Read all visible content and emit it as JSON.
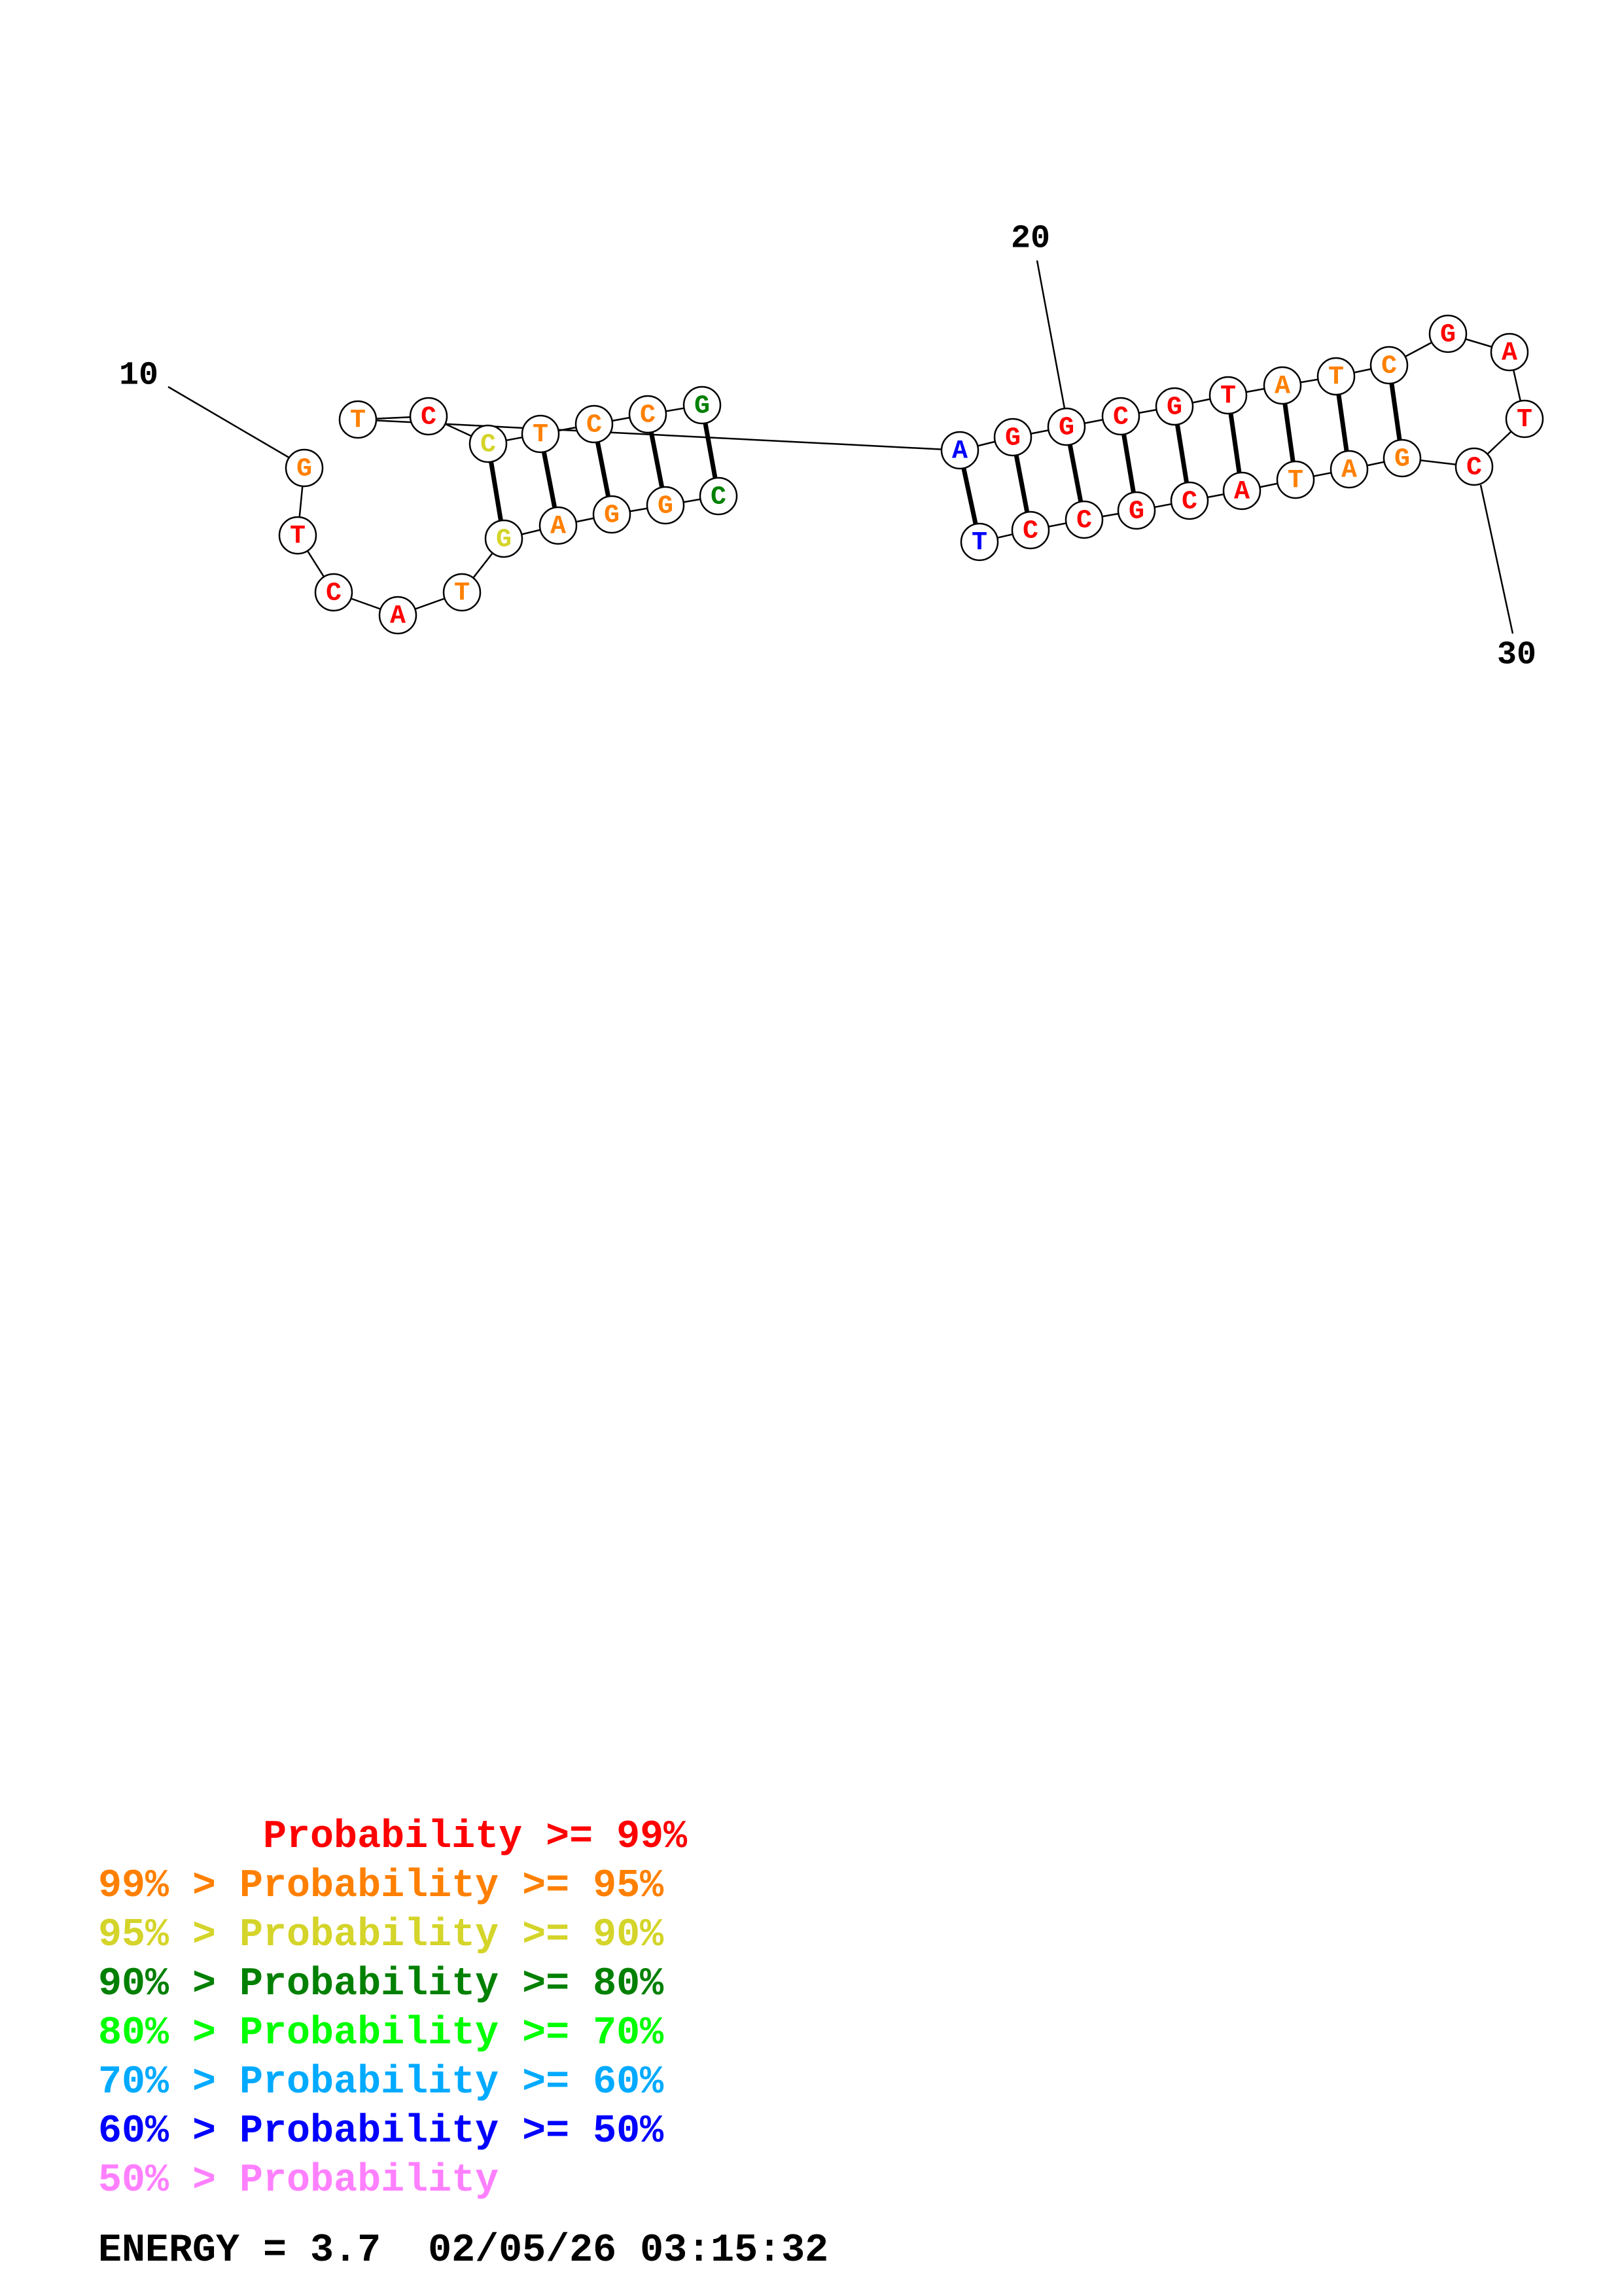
{
  "sequence": [
    {
      "base": "G",
      "color": "#ff8000"
    },
    {
      "base": "T",
      "color": "#ff0000"
    },
    {
      "base": "C",
      "color": "#ff0000"
    },
    {
      "base": "A",
      "color": "#ff0000"
    },
    {
      "base": "T",
      "color": "#ff8000"
    },
    {
      "base": "G",
      "color": "#d4d42a"
    },
    {
      "base": "A",
      "color": "#ff8000"
    },
    {
      "base": "G",
      "color": "#ff8000"
    },
    {
      "base": "G",
      "color": "#ff8000"
    },
    {
      "base": "C",
      "color": "#008000"
    },
    {
      "base": "G",
      "color": "#008000"
    },
    {
      "base": "C",
      "color": "#ff8000"
    },
    {
      "base": "C",
      "color": "#ff8000"
    },
    {
      "base": "T",
      "color": "#ff8000"
    },
    {
      "base": "C",
      "color": "#d4d42a"
    },
    {
      "base": "C",
      "color": "#ff0000"
    },
    {
      "base": "T",
      "color": "#ff8000"
    },
    {
      "base": "A",
      "color": "#0000ff"
    },
    {
      "base": "G",
      "color": "#ff0000"
    },
    {
      "base": "G",
      "color": "#ff0000"
    },
    {
      "base": "C",
      "color": "#ff0000"
    },
    {
      "base": "G",
      "color": "#ff0000"
    },
    {
      "base": "T",
      "color": "#ff0000"
    },
    {
      "base": "A",
      "color": "#ff8000"
    },
    {
      "base": "T",
      "color": "#ff8000"
    },
    {
      "base": "C",
      "color": "#ff8000"
    },
    {
      "base": "G",
      "color": "#ff0000"
    },
    {
      "base": "A",
      "color": "#ff0000"
    },
    {
      "base": "T",
      "color": "#ff0000"
    },
    {
      "base": "C",
      "color": "#ff0000"
    },
    {
      "base": "G",
      "color": "#ff8000"
    },
    {
      "base": "A",
      "color": "#ff8000"
    },
    {
      "base": "T",
      "color": "#ff8000"
    },
    {
      "base": "A",
      "color": "#ff0000"
    },
    {
      "base": "C",
      "color": "#ff0000"
    },
    {
      "base": "G",
      "color": "#ff0000"
    },
    {
      "base": "C",
      "color": "#ff0000"
    },
    {
      "base": "C",
      "color": "#ff0000"
    },
    {
      "base": "T",
      "color": "#0000ff"
    }
  ],
  "pairs": [
    [
      6,
      15
    ],
    [
      7,
      14
    ],
    [
      8,
      13
    ],
    [
      9,
      12
    ],
    [
      10,
      11
    ],
    [
      18,
      39
    ],
    [
      19,
      38
    ],
    [
      20,
      37
    ],
    [
      21,
      36
    ],
    [
      22,
      35
    ],
    [
      23,
      34
    ],
    [
      24,
      33
    ],
    [
      25,
      32
    ],
    [
      26,
      31
    ]
  ],
  "position_labels": [
    {
      "index": 10,
      "text": "10"
    },
    {
      "index": 20,
      "text": "20"
    },
    {
      "index": 30,
      "text": "30"
    }
  ],
  "legend": [
    {
      "text": "       Probability >= 99%",
      "color": "#ff0000"
    },
    {
      "text": "99% > Probability >= 95%",
      "color": "#ff8000"
    },
    {
      "text": "95% > Probability >= 90%",
      "color": "#d4d42a"
    },
    {
      "text": "90% > Probability >= 80%",
      "color": "#008000"
    },
    {
      "text": "80% > Probability >= 70%",
      "color": "#00ff00"
    },
    {
      "text": "70% > Probability >= 60%",
      "color": "#00aaff"
    },
    {
      "text": "60% > Probability >= 50%",
      "color": "#0000ff"
    },
    {
      "text": "50% > Probability",
      "color": "#ff80ff"
    }
  ],
  "energy_text": "ENERGY = 3.7  02/05/26 03:15:32"
}
